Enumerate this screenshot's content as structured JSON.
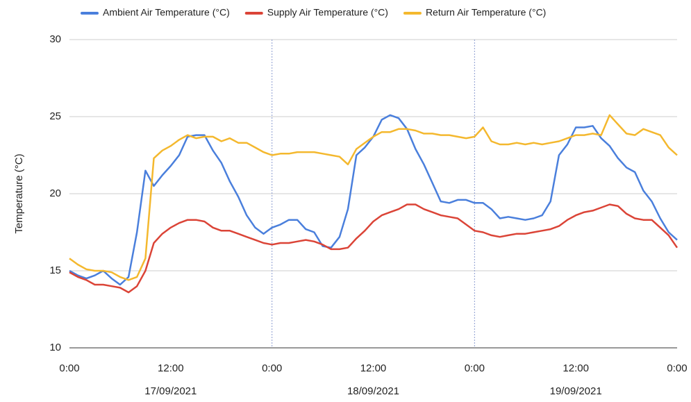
{
  "chart_data": {
    "type": "line",
    "ylabel": "Temperature (°C)",
    "x": [
      0,
      1,
      2,
      3,
      4,
      5,
      6,
      7,
      8,
      9,
      10,
      11,
      12,
      13,
      14,
      15,
      16,
      17,
      18,
      19,
      20,
      21,
      22,
      23,
      24,
      25,
      26,
      27,
      28,
      29,
      30,
      31,
      32,
      33,
      34,
      35,
      36,
      37,
      38,
      39,
      40,
      41,
      42,
      43,
      44,
      45,
      46,
      47,
      48,
      49,
      50,
      51,
      52,
      53,
      54,
      55,
      56,
      57,
      58,
      59,
      60,
      61,
      62,
      63,
      64,
      65,
      66,
      67,
      68,
      69,
      70,
      71,
      72
    ],
    "xlim": [
      0,
      72
    ],
    "xticks": [
      {
        "value": 0,
        "label": "0:00"
      },
      {
        "value": 12,
        "label": "12:00"
      },
      {
        "value": 24,
        "label": "0:00"
      },
      {
        "value": 36,
        "label": "12:00"
      },
      {
        "value": 48,
        "label": "0:00"
      },
      {
        "value": 60,
        "label": "12:00"
      },
      {
        "value": 72,
        "label": "0:00"
      }
    ],
    "x_groups": [
      {
        "value": 12,
        "label": "17/09/2021"
      },
      {
        "value": 36,
        "label": "18/09/2021"
      },
      {
        "value": 60,
        "label": "19/09/2021"
      }
    ],
    "ylim": [
      10,
      30
    ],
    "yticks": [
      10,
      15,
      20,
      25,
      30
    ],
    "grid": true,
    "legend": "top",
    "series": [
      {
        "name": "Ambient Air Temperature (°C)",
        "color": "#4a7fdc",
        "values": [
          15.0,
          14.7,
          14.5,
          14.7,
          15.0,
          14.5,
          14.1,
          14.6,
          17.5,
          21.5,
          20.5,
          21.2,
          21.8,
          22.5,
          23.7,
          23.8,
          23.8,
          22.8,
          22.0,
          20.8,
          19.8,
          18.6,
          17.8,
          17.4,
          17.8,
          18.0,
          18.3,
          18.3,
          17.7,
          17.5,
          16.6,
          16.5,
          17.2,
          19.0,
          22.5,
          23.0,
          23.7,
          24.8,
          25.1,
          24.9,
          24.2,
          22.9,
          21.9,
          20.7,
          19.5,
          19.4,
          19.6,
          19.6,
          19.4,
          19.4,
          19.0,
          18.4,
          18.5,
          18.4,
          18.3,
          18.4,
          18.6,
          19.5,
          22.5,
          23.2,
          24.3,
          24.3,
          24.4,
          23.6,
          23.1,
          22.3,
          21.7,
          21.4,
          20.2,
          19.5,
          18.4,
          17.5,
          17.0
        ]
      },
      {
        "name": "Supply Air Temperature (°C)",
        "color": "#db4437",
        "values": [
          14.9,
          14.6,
          14.4,
          14.1,
          14.1,
          14.0,
          13.9,
          13.6,
          14.0,
          15.0,
          16.8,
          17.4,
          17.8,
          18.1,
          18.3,
          18.3,
          18.2,
          17.8,
          17.6,
          17.6,
          17.4,
          17.2,
          17.0,
          16.8,
          16.7,
          16.8,
          16.8,
          16.9,
          17.0,
          16.9,
          16.7,
          16.4,
          16.4,
          16.5,
          17.1,
          17.6,
          18.2,
          18.6,
          18.8,
          19.0,
          19.3,
          19.3,
          19.0,
          18.8,
          18.6,
          18.5,
          18.4,
          18.0,
          17.6,
          17.5,
          17.3,
          17.2,
          17.3,
          17.4,
          17.4,
          17.5,
          17.6,
          17.7,
          17.9,
          18.3,
          18.6,
          18.8,
          18.9,
          19.1,
          19.3,
          19.2,
          18.7,
          18.4,
          18.3,
          18.3,
          17.8,
          17.3,
          16.5
        ]
      },
      {
        "name": "Return Air Temperature (°C)",
        "color": "#f4b82e",
        "values": [
          15.8,
          15.4,
          15.1,
          15.0,
          15.0,
          14.9,
          14.6,
          14.4,
          14.6,
          15.8,
          22.3,
          22.8,
          23.1,
          23.5,
          23.8,
          23.6,
          23.7,
          23.7,
          23.4,
          23.6,
          23.3,
          23.3,
          23.0,
          22.7,
          22.5,
          22.6,
          22.6,
          22.7,
          22.7,
          22.7,
          22.6,
          22.5,
          22.4,
          21.9,
          22.9,
          23.3,
          23.7,
          24.0,
          24.0,
          24.2,
          24.2,
          24.1,
          23.9,
          23.9,
          23.8,
          23.8,
          23.7,
          23.6,
          23.7,
          24.3,
          23.4,
          23.2,
          23.2,
          23.3,
          23.2,
          23.3,
          23.2,
          23.3,
          23.4,
          23.6,
          23.8,
          23.8,
          23.9,
          23.8,
          25.1,
          24.5,
          23.9,
          23.8,
          24.2,
          24.0,
          23.8,
          23.0,
          22.5
        ]
      }
    ]
  }
}
